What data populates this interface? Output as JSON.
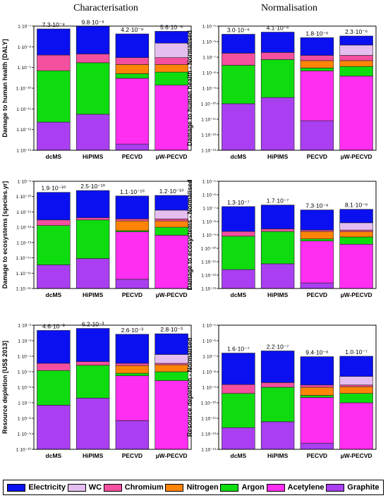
{
  "column_titles": [
    "Characterisation",
    "Normalisation"
  ],
  "legend": [
    {
      "name": "Electricity",
      "color": "#0a10ef"
    },
    {
      "name": "WC",
      "color": "#e5bef0"
    },
    {
      "name": "Chromium",
      "color": "#f54fa0"
    },
    {
      "name": "Nitrogen",
      "color": "#ff8407"
    },
    {
      "name": "Argon",
      "color": "#0fdc0f"
    },
    {
      "name": "Acetylene",
      "color": "#ff2ef0"
    },
    {
      "name": "Graphite",
      "color": "#a93ff0"
    }
  ],
  "chart_data": [
    {
      "type": "bar",
      "stacked": true,
      "log_scale": true,
      "title": "",
      "ylabel": "Damage to human health [DALY]",
      "ylim": [
        1e-13,
        1e-07
      ],
      "yticks": [
        "1·10⁻¹³",
        "1·10⁻¹²",
        "1·10⁻¹¹",
        "1·10⁻¹⁰",
        "1·10⁻⁹",
        "1·10⁻⁸",
        "1·10⁻⁷"
      ],
      "categories": [
        "dcMS",
        "HiPIMS",
        "PECVD",
        "µW-PECVD"
      ],
      "totals": [
        "7.3·10⁻⁸",
        "9.8·10⁻⁸",
        "4.2·10⁻⁸",
        "5.6·10⁻⁸"
      ],
      "series": [
        {
          "name": "Graphite",
          "tops": [
            2.3e-12,
            5.5e-12,
            2e-13,
            0
          ]
        },
        {
          "name": "Acetylene",
          "tops": [
            0,
            0,
            3e-10,
            1.4e-10
          ]
        },
        {
          "name": "Argon",
          "tops": [
            7e-10,
            1.7e-09,
            5e-10,
            6e-10
          ]
        },
        {
          "name": "Nitrogen",
          "tops": [
            0,
            0,
            1.4e-09,
            1.4e-09
          ]
        },
        {
          "name": "Chromium",
          "tops": [
            4e-09,
            4.5e-09,
            3e-09,
            3e-09
          ]
        },
        {
          "name": "WC",
          "tops": [
            0,
            0,
            0,
            1.5e-08
          ]
        },
        {
          "name": "Electricity",
          "tops": [
            7.3e-08,
            9.8e-08,
            4.2e-08,
            5.6e-08
          ]
        }
      ]
    },
    {
      "type": "bar",
      "stacked": true,
      "log_scale": true,
      "title": "",
      "ylabel": "Damage to human health - Normalised",
      "ylim": [
        1e-13,
        1e-05
      ],
      "yticks": [
        "1·10⁻¹³",
        "1·10⁻¹²",
        "1·10⁻¹¹",
        "1·10⁻¹⁰",
        "1·10⁻⁹",
        "1·10⁻⁸",
        "1·10⁻⁷",
        "1·10⁻⁶",
        "1·10⁻⁵"
      ],
      "categories": [
        "dcMS",
        "HiPIMS",
        "PECVD",
        "µW-PECVD"
      ],
      "totals": [
        "3.0·10⁻⁶",
        "4.1·10⁻⁶",
        "1.8·10⁻⁶",
        "2.3·10⁻⁶"
      ],
      "series": [
        {
          "name": "Graphite",
          "tops": [
            1e-10,
            2.5e-10,
            8e-12,
            0
          ]
        },
        {
          "name": "Acetylene",
          "tops": [
            0,
            0,
            1.3e-08,
            6e-09
          ]
        },
        {
          "name": "Argon",
          "tops": [
            3e-08,
            7e-08,
            2e-08,
            2.5e-08
          ]
        },
        {
          "name": "Nitrogen",
          "tops": [
            0,
            0,
            6e-08,
            6e-08
          ]
        },
        {
          "name": "Chromium",
          "tops": [
            1.8e-07,
            2e-07,
            1.3e-07,
            1.3e-07
          ]
        },
        {
          "name": "WC",
          "tops": [
            0,
            0,
            0,
            6e-07
          ]
        },
        {
          "name": "Electricity",
          "tops": [
            3e-06,
            4.1e-06,
            1.8e-06,
            2.3e-06
          ]
        }
      ]
    },
    {
      "type": "bar",
      "stacked": true,
      "log_scale": true,
      "title": "",
      "ylabel": "Damage to ecosystems [species.yr]",
      "ylim": [
        1e-16,
        1e-09
      ],
      "yticks": [
        "1·10⁻¹⁶",
        "1·10⁻¹⁵",
        "1·10⁻¹⁴",
        "1·10⁻¹³",
        "1·10⁻¹²",
        "1·10⁻¹¹",
        "1·10⁻¹⁰",
        "1·10⁻⁹"
      ],
      "categories": [
        "dcMS",
        "HiPIMS",
        "PECVD",
        "µW-PECVD"
      ],
      "totals": [
        "1.9·10⁻¹⁰",
        "2.5·10⁻¹⁰",
        "1.1·10⁻¹⁰",
        "1.2·10⁻¹⁰"
      ],
      "series": [
        {
          "name": "Graphite",
          "tops": [
            3.5e-15,
            9e-15,
            4e-16,
            0
          ]
        },
        {
          "name": "Acetylene",
          "tops": [
            0,
            0,
            5e-13,
            3e-13
          ]
        },
        {
          "name": "Argon",
          "tops": [
            1.3e-12,
            3e-12,
            6e-13,
            1e-12
          ]
        },
        {
          "name": "Nitrogen",
          "tops": [
            0,
            0,
            2.6e-12,
            2.6e-12
          ]
        },
        {
          "name": "Chromium",
          "tops": [
            3e-12,
            4.2e-12,
            3.5e-12,
            3.5e-12
          ]
        },
        {
          "name": "WC",
          "tops": [
            0,
            0,
            0,
            1.3e-11
          ]
        },
        {
          "name": "Electricity",
          "tops": [
            1.9e-10,
            2.5e-10,
            1.1e-10,
            1.2e-10
          ]
        }
      ]
    },
    {
      "type": "bar",
      "stacked": true,
      "log_scale": true,
      "title": "",
      "ylabel": "Damage to ecosystems - Normalised",
      "ylim": [
        1e-13,
        1e-05
      ],
      "yticks": [
        "1·10⁻¹³",
        "1·10⁻¹²",
        "1·10⁻¹¹",
        "1·10⁻¹⁰",
        "1·10⁻⁹",
        "1·10⁻⁸",
        "1·10⁻⁷",
        "1·10⁻⁶",
        "1·10⁻⁵"
      ],
      "categories": [
        "dcMS",
        "HiPIMS",
        "PECVD",
        "µW-PECVD"
      ],
      "totals": [
        "1.3·10⁻⁷",
        "1.7·10⁻⁷",
        "7.3·10⁻⁸",
        "8.1·10⁻⁸"
      ],
      "series": [
        {
          "name": "Graphite",
          "tops": [
            2.6e-12,
            7e-12,
            2.6e-13,
            0
          ]
        },
        {
          "name": "Acetylene",
          "tops": [
            0,
            0,
            3.5e-10,
            2e-10
          ]
        },
        {
          "name": "Argon",
          "tops": [
            8e-10,
            1.8e-09,
            5e-10,
            7e-10
          ]
        },
        {
          "name": "Nitrogen",
          "tops": [
            0,
            0,
            1.8e-09,
            1.8e-09
          ]
        },
        {
          "name": "Chromium",
          "tops": [
            1.8e-09,
            2.8e-09,
            2.3e-09,
            2.3e-09
          ]
        },
        {
          "name": "WC",
          "tops": [
            0,
            0,
            0,
            8e-09
          ]
        },
        {
          "name": "Electricity",
          "tops": [
            1.3e-07,
            1.7e-07,
            7.3e-08,
            8.1e-08
          ]
        }
      ]
    },
    {
      "type": "bar",
      "stacked": true,
      "log_scale": true,
      "title": "",
      "ylabel": "Resource depletion [US$ 2013]",
      "ylim": [
        1e-10,
        0.01
      ],
      "yticks": [
        "1·10⁻¹⁰",
        "1·10⁻⁹",
        "1·10⁻⁸",
        "1·10⁻⁷",
        "1·10⁻⁶",
        "1·10⁻⁵",
        "1·10⁻⁴",
        "1·10⁻³",
        "1·10⁻²"
      ],
      "categories": [
        "dcMS",
        "HiPIMS",
        "PECVD",
        "µW-PECVD"
      ],
      "totals": [
        "4.6·10⁻³",
        "6.2·10⁻³",
        "2.6·10⁻³",
        "2.8·10⁻³"
      ],
      "series": [
        {
          "name": "Graphite",
          "tops": [
            7e-08,
            2e-07,
            7e-09,
            0
          ]
        },
        {
          "name": "Acetylene",
          "tops": [
            0,
            0,
            5.5e-06,
            2.7e-06
          ]
        },
        {
          "name": "Argon",
          "tops": [
            1.2e-05,
            2.6e-05,
            8e-06,
            1e-05
          ]
        },
        {
          "name": "Nitrogen",
          "tops": [
            0,
            0,
            2.5e-05,
            2.8e-05
          ]
        },
        {
          "name": "Chromium",
          "tops": [
            3.5e-05,
            4.5e-05,
            3.5e-05,
            3.5e-05
          ]
        },
        {
          "name": "WC",
          "tops": [
            0,
            0,
            0,
            0.00013
          ]
        },
        {
          "name": "Electricity",
          "tops": [
            0.0046,
            0.0062,
            0.0026,
            0.0028
          ]
        }
      ]
    },
    {
      "type": "bar",
      "stacked": true,
      "log_scale": true,
      "title": "",
      "ylabel": "Resource depletion - Normalised",
      "ylim": [
        1e-13,
        1e-05
      ],
      "yticks": [
        "1·10⁻¹³",
        "1·10⁻¹²",
        "1·10⁻¹¹",
        "1·10⁻¹⁰",
        "1·10⁻⁹",
        "1·10⁻⁸",
        "1·10⁻⁷",
        "1·10⁻⁶",
        "1·10⁻⁵"
      ],
      "categories": [
        "dcMS",
        "HiPIMS",
        "PECVD",
        "µW-PECVD"
      ],
      "totals": [
        "1.6·10⁻⁷",
        "2.2·10⁻⁷",
        "9.4·10⁻⁸",
        "1.0·10⁻⁷"
      ],
      "series": [
        {
          "name": "Graphite",
          "tops": [
            2.5e-12,
            6e-12,
            2.5e-13,
            0
          ]
        },
        {
          "name": "Acetylene",
          "tops": [
            0,
            0,
            2.2e-10,
            1e-10
          ]
        },
        {
          "name": "Argon",
          "tops": [
            4e-10,
            1e-09,
            3e-10,
            4e-10
          ]
        },
        {
          "name": "Nitrogen",
          "tops": [
            0,
            0,
            1e-09,
            1.1e-09
          ]
        },
        {
          "name": "Chromium",
          "tops": [
            1.5e-09,
            2e-09,
            1.4e-09,
            1.4e-09
          ]
        },
        {
          "name": "WC",
          "tops": [
            0,
            0,
            0,
            5e-09
          ]
        },
        {
          "name": "Electricity",
          "tops": [
            1.6e-07,
            2.2e-07,
            9.4e-08,
            1e-07
          ]
        }
      ]
    }
  ]
}
